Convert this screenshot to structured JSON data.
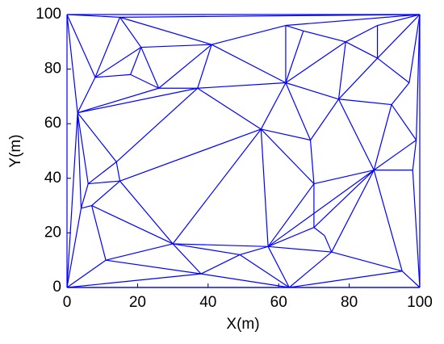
{
  "chart_data": {
    "type": "mesh",
    "x_label": "X(m)",
    "y_label": "Y(m)",
    "color": "#0000ff",
    "xlim": [
      0,
      100
    ],
    "ylim": [
      0,
      100
    ],
    "xticks": [
      0,
      20,
      40,
      60,
      80,
      100
    ],
    "yticks": [
      0,
      20,
      40,
      60,
      80,
      100
    ],
    "segments": [
      [
        0,
        0,
        100,
        0
      ],
      [
        100,
        0,
        100,
        100
      ],
      [
        100,
        100,
        0,
        100
      ],
      [
        0,
        100,
        0,
        0
      ],
      [
        0,
        100,
        15,
        99
      ],
      [
        0,
        100,
        8,
        77
      ],
      [
        0,
        100,
        3,
        64
      ],
      [
        15,
        99,
        100,
        100
      ],
      [
        15,
        99,
        21,
        88
      ],
      [
        15,
        99,
        41,
        89
      ],
      [
        15,
        99,
        8,
        77
      ],
      [
        21,
        88,
        18,
        78
      ],
      [
        21,
        88,
        26,
        73
      ],
      [
        21,
        88,
        41,
        89
      ],
      [
        21,
        88,
        8,
        77
      ],
      [
        8,
        77,
        18,
        78
      ],
      [
        8,
        77,
        3,
        64
      ],
      [
        18,
        78,
        26,
        73
      ],
      [
        26,
        73,
        3,
        64
      ],
      [
        26,
        73,
        41,
        89
      ],
      [
        26,
        73,
        37,
        73
      ],
      [
        41,
        89,
        37,
        73
      ],
      [
        41,
        89,
        62,
        96
      ],
      [
        41,
        89,
        62,
        75
      ],
      [
        62,
        96,
        62,
        75
      ],
      [
        62,
        96,
        67,
        94
      ],
      [
        62,
        96,
        100,
        100
      ],
      [
        67,
        94,
        62,
        75
      ],
      [
        67,
        94,
        79,
        90
      ],
      [
        79,
        90,
        88,
        96
      ],
      [
        79,
        90,
        62,
        75
      ],
      [
        79,
        90,
        77,
        69
      ],
      [
        88,
        96,
        100,
        100
      ],
      [
        88,
        96,
        88,
        84
      ],
      [
        79,
        90,
        88,
        84
      ],
      [
        88,
        84,
        100,
        100
      ],
      [
        88,
        84,
        77,
        69
      ],
      [
        88,
        84,
        97,
        75
      ],
      [
        97,
        75,
        100,
        100
      ],
      [
        97,
        75,
        92,
        67
      ],
      [
        77,
        69,
        92,
        67
      ],
      [
        92,
        67,
        99,
        54
      ],
      [
        99,
        54,
        100,
        100
      ],
      [
        99,
        54,
        87,
        43
      ],
      [
        92,
        67,
        87,
        43
      ],
      [
        77,
        69,
        87,
        43
      ],
      [
        77,
        69,
        69,
        54
      ],
      [
        62,
        75,
        77,
        69
      ],
      [
        37,
        73,
        62,
        75
      ],
      [
        37,
        73,
        55,
        58
      ],
      [
        62,
        75,
        55,
        58
      ],
      [
        55,
        58,
        69,
        54
      ],
      [
        69,
        54,
        70,
        38
      ],
      [
        62,
        75,
        69,
        54
      ],
      [
        3,
        64,
        37,
        73
      ],
      [
        3,
        64,
        14,
        46
      ],
      [
        14,
        46,
        37,
        73
      ],
      [
        15,
        39,
        55,
        58
      ],
      [
        15,
        39,
        30,
        16
      ],
      [
        30,
        16,
        55,
        58
      ],
      [
        55,
        58,
        57,
        15
      ],
      [
        55,
        58,
        70,
        38
      ],
      [
        70,
        38,
        70,
        22
      ],
      [
        70,
        38,
        57,
        15
      ],
      [
        70,
        38,
        87,
        43
      ],
      [
        87,
        43,
        57,
        15
      ],
      [
        87,
        43,
        75,
        13
      ],
      [
        87,
        43,
        95,
        6
      ],
      [
        87,
        43,
        98,
        43
      ],
      [
        98,
        43,
        99,
        54
      ],
      [
        98,
        43,
        100,
        0
      ],
      [
        95,
        6,
        100,
        0
      ],
      [
        95,
        6,
        75,
        13
      ],
      [
        95,
        6,
        63,
        0
      ],
      [
        63,
        0,
        100,
        0
      ],
      [
        63,
        0,
        75,
        13
      ],
      [
        63,
        0,
        57,
        15
      ],
      [
        63,
        0,
        49,
        12
      ],
      [
        63,
        0,
        38,
        5
      ],
      [
        63,
        0,
        0,
        0
      ],
      [
        38,
        5,
        0,
        0
      ],
      [
        38,
        5,
        30,
        16
      ],
      [
        38,
        5,
        49,
        12
      ],
      [
        49,
        12,
        57,
        15
      ],
      [
        49,
        12,
        30,
        16
      ],
      [
        57,
        15,
        30,
        16
      ],
      [
        57,
        15,
        70,
        22
      ],
      [
        57,
        15,
        75,
        13
      ],
      [
        70,
        22,
        73,
        19
      ],
      [
        73,
        19,
        75,
        13
      ],
      [
        30,
        16,
        11,
        10
      ],
      [
        30,
        16,
        7,
        30
      ],
      [
        11,
        10,
        0,
        0
      ],
      [
        11,
        10,
        7,
        30
      ],
      [
        11,
        10,
        38,
        5
      ],
      [
        7,
        30,
        4,
        29
      ],
      [
        7,
        30,
        15,
        39
      ],
      [
        4,
        29,
        0,
        0
      ],
      [
        4,
        29,
        6,
        38
      ],
      [
        6,
        38,
        15,
        39
      ],
      [
        6,
        38,
        3,
        64
      ],
      [
        14,
        46,
        15,
        39
      ],
      [
        14,
        46,
        6,
        38
      ],
      [
        3,
        64,
        0,
        0
      ],
      [
        3,
        64,
        4,
        29
      ],
      [
        70,
        22,
        87,
        43
      ]
    ]
  }
}
